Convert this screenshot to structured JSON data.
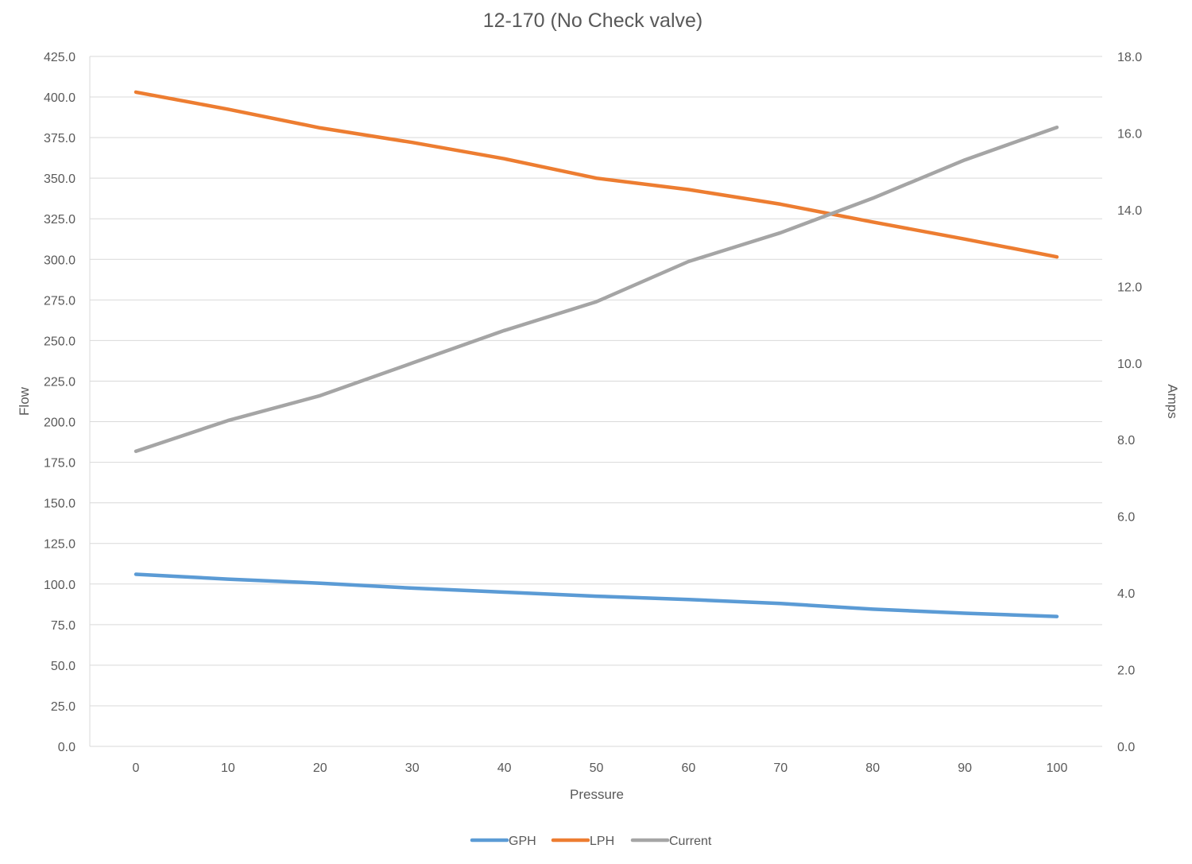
{
  "chart_data": {
    "type": "line",
    "title": "12-170 (No Check valve)",
    "xlabel": "Pressure",
    "ylabel": "Flow",
    "y2label": "Amps",
    "x": [
      0,
      10,
      20,
      30,
      40,
      50,
      60,
      70,
      80,
      90,
      100
    ],
    "x_tick_labels": [
      "0",
      "10",
      "20",
      "30",
      "40",
      "50",
      "60",
      "70",
      "80",
      "90",
      "100"
    ],
    "ylim": [
      0,
      425
    ],
    "y_ticks": [
      "0.0",
      "25.0",
      "50.0",
      "75.0",
      "100.0",
      "125.0",
      "150.0",
      "175.0",
      "200.0",
      "225.0",
      "250.0",
      "275.0",
      "300.0",
      "325.0",
      "350.0",
      "375.0",
      "400.0",
      "425.0"
    ],
    "y2lim": [
      0,
      18
    ],
    "y2_ticks": [
      "0.0",
      "2.0",
      "4.0",
      "6.0",
      "8.0",
      "10.0",
      "12.0",
      "14.0",
      "16.0",
      "18.0"
    ],
    "grid": true,
    "legend_position": "bottom",
    "series": [
      {
        "name": "GPH",
        "axis": "left",
        "color": "#5b9bd5",
        "values": [
          106,
          103,
          100.5,
          97.5,
          95,
          92.5,
          90.5,
          88,
          84.5,
          82,
          80
        ]
      },
      {
        "name": "LPH",
        "axis": "left",
        "color": "#ed7d31",
        "values": [
          403,
          392.5,
          381,
          372,
          362,
          350,
          343,
          334,
          323,
          312.5,
          301.5
        ]
      },
      {
        "name": "Current",
        "axis": "right",
        "color": "#a5a5a5",
        "values": [
          7.7,
          8.5,
          9.15,
          10.0,
          10.85,
          11.6,
          12.65,
          13.4,
          14.3,
          15.3,
          16.15
        ]
      }
    ]
  }
}
